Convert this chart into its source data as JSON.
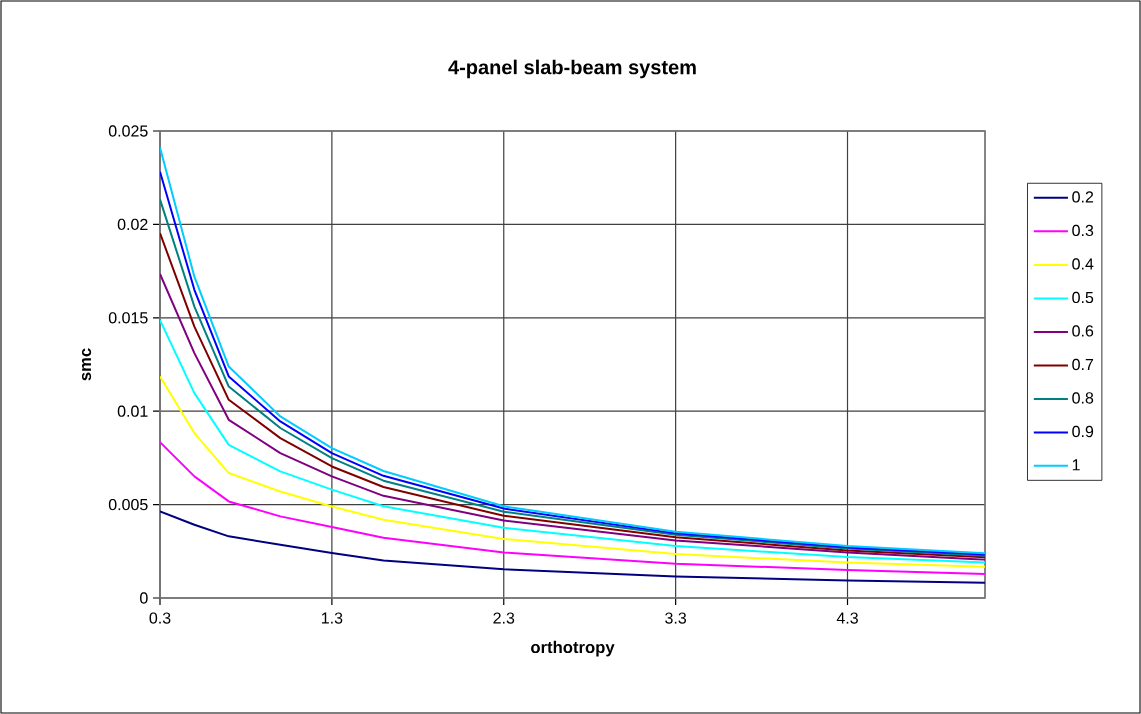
{
  "chart_data": {
    "type": "line",
    "title": "4-panel slab-beam system",
    "xlabel": "orthotropy",
    "ylabel": "smc",
    "x": [
      0.3,
      0.5,
      0.7,
      1.0,
      1.3,
      1.6,
      2.3,
      3.3,
      4.3,
      5.1
    ],
    "series": [
      {
        "name": "0.2",
        "color": "#000080",
        "values": [
          0.00464,
          0.00392,
          0.0033,
          0.00285,
          0.00241,
          0.00201,
          0.00154,
          0.00115,
          0.00094,
          0.00081
        ]
      },
      {
        "name": "0.3",
        "color": "#ff00ff",
        "values": [
          0.00834,
          0.00651,
          0.00517,
          0.00437,
          0.0038,
          0.00323,
          0.00244,
          0.00184,
          0.0015,
          0.00128
        ]
      },
      {
        "name": "0.4",
        "color": "#ffff00",
        "values": [
          0.01186,
          0.00883,
          0.00669,
          0.0057,
          0.0049,
          0.00419,
          0.00316,
          0.00235,
          0.0019,
          0.00167
        ]
      },
      {
        "name": "0.5",
        "color": "#00ffff",
        "values": [
          0.01487,
          0.01097,
          0.0082,
          0.00678,
          0.0058,
          0.00491,
          0.00376,
          0.00278,
          0.0022,
          0.0019
        ]
      },
      {
        "name": "0.6",
        "color": "#800080",
        "values": [
          0.01735,
          0.01311,
          0.00954,
          0.00776,
          0.00651,
          0.00547,
          0.00415,
          0.00308,
          0.00244,
          0.00205
        ]
      },
      {
        "name": "0.7",
        "color": "#800000",
        "values": [
          0.01953,
          0.01453,
          0.01061,
          0.00856,
          0.00704,
          0.00594,
          0.0044,
          0.00325,
          0.00254,
          0.00218
        ]
      },
      {
        "name": "0.8",
        "color": "#008080",
        "values": [
          0.02134,
          0.0156,
          0.01132,
          0.0091,
          0.00749,
          0.00628,
          0.00462,
          0.00338,
          0.00265,
          0.00226
        ]
      },
      {
        "name": "0.9",
        "color": "#0000ff",
        "values": [
          0.02282,
          0.0165,
          0.01186,
          0.00945,
          0.00776,
          0.00654,
          0.00479,
          0.00346,
          0.00271,
          0.00233
        ]
      },
      {
        "name": "1",
        "color": "#00ccff",
        "values": [
          0.02411,
          0.0172,
          0.01239,
          0.00972,
          0.00802,
          0.0068,
          0.00491,
          0.00355,
          0.00278,
          0.00239
        ]
      }
    ],
    "xlim": [
      0.3,
      5.1
    ],
    "xticks": [
      0.3,
      1.3,
      2.3,
      3.3,
      4.3
    ],
    "ylim": [
      0,
      0.025
    ],
    "yticks": [
      0,
      0.005,
      0.01,
      0.015,
      0.02,
      0.025
    ],
    "grid": true,
    "legend": "right",
    "marker": "none",
    "line_style": "solid"
  }
}
